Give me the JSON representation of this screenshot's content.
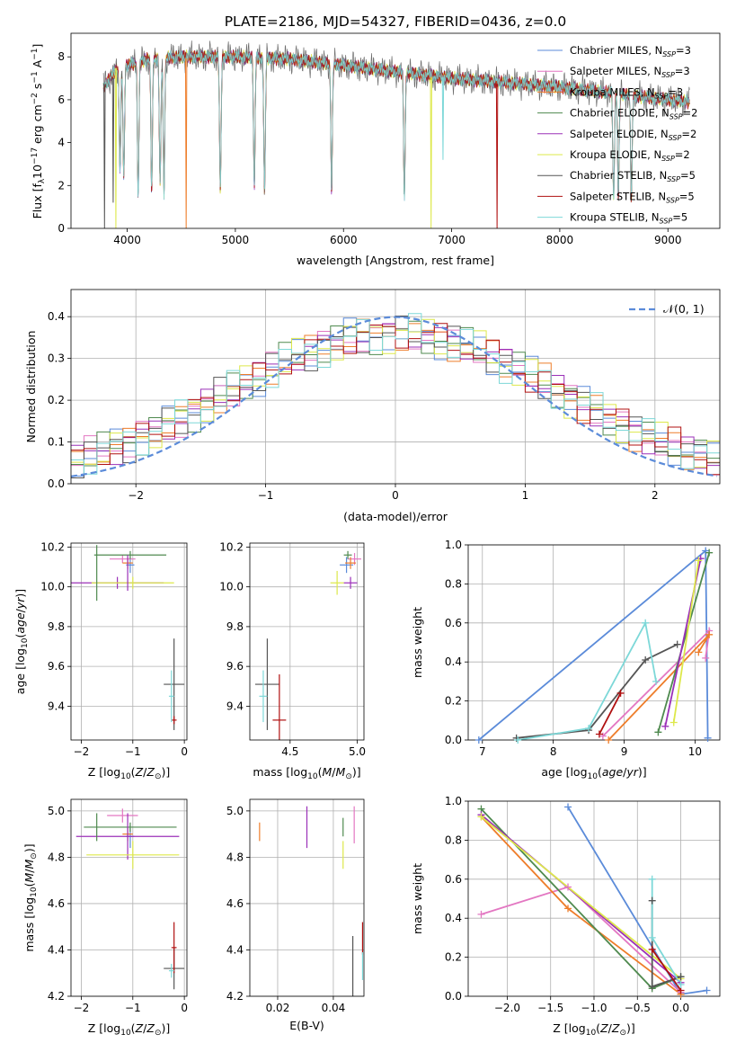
{
  "title": "PLATE=2186, MJD=54327, FIBERID=0436, z=0.0",
  "colors": {
    "Chabrier MILES": "#5b8bd9",
    "Salpeter MILES": "#e377c2",
    "Kroupa MILES": "#ee7d2a",
    "Chabrier ELODIE": "#4f8a4f",
    "Salpeter ELODIE": "#9b30b8",
    "Kroupa ELODIE": "#dde84a",
    "Chabrier STELIB": "#555555",
    "Salpeter STELIB": "#b01010",
    "Kroupa STELIB": "#7dd8d8"
  },
  "legend_spectrum": [
    {
      "name": "Chabrier MILES",
      "text": "Chabrier MILES, N",
      "sub": "SSP",
      "tail": "=3"
    },
    {
      "name": "Salpeter MILES",
      "text": "Salpeter MILES, N",
      "sub": "SSP",
      "tail": "=3"
    },
    {
      "name": "Kroupa MILES",
      "text": "Kroupa MILES, N",
      "sub": "SSP",
      "tail": "=3"
    },
    {
      "name": "Chabrier ELODIE",
      "text": "Chabrier ELODIE, N",
      "sub": "SSP",
      "tail": "=2"
    },
    {
      "name": "Salpeter ELODIE",
      "text": "Salpeter ELODIE, N",
      "sub": "SSP",
      "tail": "=2"
    },
    {
      "name": "Kroupa ELODIE",
      "text": "Kroupa ELODIE, N",
      "sub": "SSP",
      "tail": "=2"
    },
    {
      "name": "Chabrier STELIB",
      "text": "Chabrier STELIB, N",
      "sub": "SSP",
      "tail": "=5"
    },
    {
      "name": "Salpeter STELIB",
      "text": "Salpeter STELIB, N",
      "sub": "SSP",
      "tail": "=5"
    },
    {
      "name": "Kroupa STELIB",
      "text": "Kroupa STELIB, N",
      "sub": "SSP",
      "tail": "=5"
    }
  ],
  "legend_hist": "𝒩(0, 1)",
  "chart_data": [
    {
      "id": "spectrum",
      "type": "line",
      "xlabel": "wavelength [Angstrom, rest frame]",
      "ylabel": "Flux [f_λ 10^-17 erg cm^-2 s^-1 A^-1]",
      "xlim": [
        3480,
        9480
      ],
      "ylim": [
        0,
        9.1
      ],
      "xticks": [
        4000,
        5000,
        6000,
        7000,
        8000,
        9000
      ],
      "yticks": [
        0,
        2,
        4,
        6,
        8
      ],
      "continuum": [
        [
          3780,
          6.6
        ],
        [
          3900,
          7.4
        ],
        [
          4000,
          7.6
        ],
        [
          4200,
          7.9
        ],
        [
          4500,
          8.0
        ],
        [
          5000,
          8.0
        ],
        [
          5500,
          7.9
        ],
        [
          6000,
          7.6
        ],
        [
          6500,
          7.3
        ],
        [
          7000,
          7.0
        ],
        [
          7500,
          6.8
        ],
        [
          8000,
          6.6
        ],
        [
          8500,
          6.3
        ],
        [
          9000,
          6.0
        ],
        [
          9200,
          5.9
        ]
      ],
      "features": [
        [
          3933,
          2.0
        ],
        [
          3968,
          1.5
        ],
        [
          4101,
          0.6
        ],
        [
          4226,
          0.7
        ],
        [
          4304,
          1.0
        ],
        [
          4340,
          0.5
        ],
        [
          4861,
          0.5
        ],
        [
          5175,
          0.8
        ],
        [
          5270,
          0.4
        ],
        [
          5890,
          0.6
        ],
        [
          6563,
          0.5
        ],
        [
          8498,
          0.4
        ],
        [
          8542,
          0.5
        ],
        [
          8662,
          0.4
        ]
      ],
      "spikes": [
        {
          "x": 3790,
          "y": 0.0,
          "series": "Chabrier STELIB"
        },
        {
          "x": 3870,
          "y": 1.2,
          "series": "Chabrier STELIB"
        },
        {
          "x": 3895,
          "y": 0.0,
          "series": "Kroupa ELODIE"
        },
        {
          "x": 4545,
          "y": 0.0,
          "series": "Kroupa MILES"
        },
        {
          "x": 6810,
          "y": 0.0,
          "series": "Kroupa ELODIE"
        },
        {
          "x": 6920,
          "y": 3.2,
          "series": "Kroupa STELIB"
        },
        {
          "x": 7420,
          "y": 0.0,
          "series": "Salpeter STELIB"
        }
      ],
      "series": [
        "Chabrier MILES",
        "Salpeter MILES",
        "Kroupa MILES",
        "Chabrier ELODIE",
        "Salpeter ELODIE",
        "Kroupa ELODIE",
        "Chabrier STELIB",
        "Salpeter STELIB",
        "Kroupa STELIB"
      ]
    },
    {
      "id": "residual_hist",
      "type": "line",
      "xlabel": "(data-model)/error",
      "ylabel": "Normed distribution",
      "xlim": [
        -2.5,
        2.5
      ],
      "ylim": [
        0,
        0.465
      ],
      "xticks": [
        -2,
        -1,
        0,
        1,
        2
      ],
      "yticks": [
        0.0,
        0.1,
        0.2,
        0.3,
        0.4
      ],
      "bin_width": 0.1,
      "reference": "N(0,1)"
    },
    {
      "id": "age_vs_Z",
      "type": "scatter",
      "xlabel": "Z [log10(Z/Z⊙)]",
      "ylabel": "age [log10(age/yr)]",
      "xlim": [
        -2.2,
        0.05
      ],
      "ylim": [
        9.23,
        10.22
      ],
      "xticks": [
        -2,
        -1,
        0
      ],
      "yticks": [
        9.4,
        9.6,
        9.8,
        10.0,
        10.2
      ],
      "points": [
        {
          "series": "Chabrier MILES",
          "x": -1.05,
          "y": 10.11,
          "xerr": 0.08,
          "yerr": 0.04
        },
        {
          "series": "Salpeter MILES",
          "x": -1.2,
          "y": 10.14,
          "xerr": 0.25,
          "yerr": 0.02
        },
        {
          "series": "Kroupa MILES",
          "x": -1.1,
          "y": 10.12,
          "xerr": 0.1,
          "yerr": 0.03
        },
        {
          "series": "Chabrier ELODIE",
          "x": -1.05,
          "y": 10.16,
          "xerr": 0.7,
          "yerr": 0.02
        },
        {
          "series": "Salpeter ELODIE",
          "x": -1.3,
          "y": 10.02,
          "xerr": 0.9,
          "yerr": 0.03
        },
        {
          "series": "Kroupa ELODIE",
          "x": -1.0,
          "y": 10.02,
          "xerr": 0.8,
          "yerr": 0.03
        },
        {
          "series": "Chabrier ELODIE",
          "x": -1.7,
          "y": 10.07,
          "xerr": 0.0,
          "yerr": 0.14
        },
        {
          "series": "Salpeter ELODIE",
          "x": -1.1,
          "y": 10.07,
          "xerr": 0.0,
          "yerr": 0.09
        },
        {
          "series": "Chabrier STELIB",
          "x": -0.2,
          "y": 9.51,
          "xerr": 0.2,
          "yerr": 0.23
        },
        {
          "series": "Salpeter STELIB",
          "x": -0.2,
          "y": 9.33,
          "xerr": 0.05,
          "yerr": 0.02
        },
        {
          "series": "Kroupa STELIB",
          "x": -0.25,
          "y": 9.45,
          "xerr": 0.05,
          "yerr": 0.13
        }
      ]
    },
    {
      "id": "age_vs_mass",
      "type": "scatter",
      "xlabel": "mass [log10(M/M⊙)]",
      "ylabel": "",
      "xlim": [
        4.2,
        5.05
      ],
      "ylim": [
        9.23,
        10.22
      ],
      "xticks": [
        4.5,
        5.0
      ],
      "yticks": [
        9.4,
        9.6,
        9.8,
        10.0,
        10.2
      ],
      "points": [
        {
          "series": "Chabrier MILES",
          "x": 4.92,
          "y": 10.11,
          "xerr": 0.05,
          "yerr": 0.04
        },
        {
          "series": "Salpeter MILES",
          "x": 4.98,
          "y": 10.14,
          "xerr": 0.05,
          "yerr": 0.03
        },
        {
          "series": "Kroupa MILES",
          "x": 4.95,
          "y": 10.12,
          "xerr": 0.04,
          "yerr": 0.03
        },
        {
          "series": "Chabrier ELODIE",
          "x": 4.93,
          "y": 10.16,
          "xerr": 0.03,
          "yerr": 0.02
        },
        {
          "series": "Salpeter ELODIE",
          "x": 4.95,
          "y": 10.02,
          "xerr": 0.05,
          "yerr": 0.03
        },
        {
          "series": "Kroupa ELODIE",
          "x": 4.85,
          "y": 10.02,
          "xerr": 0.05,
          "yerr": 0.06
        },
        {
          "series": "Chabrier STELIB",
          "x": 4.33,
          "y": 9.51,
          "xerr": 0.09,
          "yerr": 0.23
        },
        {
          "series": "Salpeter STELIB",
          "x": 4.42,
          "y": 9.33,
          "xerr": 0.05,
          "yerr": 0.23
        },
        {
          "series": "Kroupa STELIB",
          "x": 4.3,
          "y": 9.45,
          "xerr": 0.03,
          "yerr": 0.13
        }
      ]
    },
    {
      "id": "massweight_vs_age",
      "type": "line",
      "xlabel": "age [log10(age/yr)]",
      "ylabel": "mass weight",
      "xlim": [
        6.8,
        10.35
      ],
      "ylim": [
        0,
        1.0
      ],
      "xticks": [
        7,
        8,
        9,
        10
      ],
      "yticks": [
        0.0,
        0.2,
        0.4,
        0.6,
        0.8,
        1.0
      ],
      "series": [
        {
          "name": "Chabrier MILES",
          "x": [
            6.95,
            10.15,
            10.18
          ],
          "y": [
            0.0,
            0.97,
            0.01
          ]
        },
        {
          "name": "Salpeter MILES",
          "x": [
            8.7,
            10.2,
            10.15
          ],
          "y": [
            0.02,
            0.56,
            0.42
          ]
        },
        {
          "name": "Kroupa MILES",
          "x": [
            8.78,
            10.2,
            10.05
          ],
          "y": [
            0.0,
            0.54,
            0.45
          ]
        },
        {
          "name": "Chabrier ELODIE",
          "x": [
            9.48,
            10.2
          ],
          "y": [
            0.04,
            0.96
          ]
        },
        {
          "name": "Salpeter ELODIE",
          "x": [
            9.58,
            10.08
          ],
          "y": [
            0.07,
            0.93
          ]
        },
        {
          "name": "Kroupa ELODIE",
          "x": [
            9.7,
            10.05
          ],
          "y": [
            0.09,
            0.92
          ]
        },
        {
          "name": "Chabrier STELIB",
          "x": [
            7.48,
            8.5,
            9.3,
            9.75
          ],
          "y": [
            0.01,
            0.05,
            0.41,
            0.49
          ]
        },
        {
          "name": "Salpeter STELIB",
          "x": [
            8.65,
            8.95
          ],
          "y": [
            0.03,
            0.24
          ]
        },
        {
          "name": "Kroupa STELIB",
          "x": [
            7.5,
            8.5,
            9.3,
            9.45
          ],
          "y": [
            0.0,
            0.06,
            0.6,
            0.3
          ]
        }
      ]
    },
    {
      "id": "mass_vs_Z",
      "type": "scatter",
      "xlabel": "Z [log10(Z/Z⊙)]",
      "ylabel": "mass [log10(M/M⊙)]",
      "xlim": [
        -2.2,
        0.05
      ],
      "ylim": [
        4.2,
        5.05
      ],
      "xticks": [
        -2,
        -1,
        0
      ],
      "yticks": [
        4.2,
        4.4,
        4.6,
        4.8,
        5.0
      ],
      "points": [
        {
          "series": "Chabrier MILES",
          "x": -1.05,
          "y": 4.89,
          "xerr": 0.08,
          "yerr": 0.05
        },
        {
          "series": "Salpeter MILES",
          "x": -1.2,
          "y": 4.98,
          "xerr": 0.3,
          "yerr": 0.03
        },
        {
          "series": "Kroupa MILES",
          "x": -1.1,
          "y": 4.9,
          "xerr": 0.1,
          "yerr": 0.03
        },
        {
          "series": "Chabrier ELODIE",
          "x": -1.05,
          "y": 4.93,
          "xerr": 0.9,
          "yerr": 0.02
        },
        {
          "series": "Salpeter ELODIE",
          "x": -1.1,
          "y": 4.89,
          "xerr": 1.0,
          "yerr": 0.1
        },
        {
          "series": "Kroupa ELODIE",
          "x": -1.0,
          "y": 4.81,
          "xerr": 0.9,
          "yerr": 0.06
        },
        {
          "series": "Chabrier ELODIE",
          "x": -1.7,
          "y": 4.93,
          "xerr": 0.0,
          "yerr": 0.06
        },
        {
          "series": "Chabrier STELIB",
          "x": -0.2,
          "y": 4.32,
          "xerr": 0.2,
          "yerr": 0.09
        },
        {
          "series": "Salpeter STELIB",
          "x": -0.2,
          "y": 4.41,
          "xerr": 0.05,
          "yerr": 0.11
        },
        {
          "series": "Kroupa STELIB",
          "x": -0.25,
          "y": 4.31,
          "xerr": 0.05,
          "yerr": 0.03
        }
      ]
    },
    {
      "id": "mass_vs_EBV",
      "type": "scatter",
      "xlabel": "E(B-V)",
      "ylabel": "",
      "xlim": [
        0.01,
        0.051
      ],
      "ylim": [
        4.2,
        5.05
      ],
      "xticks": [
        0.02,
        0.04
      ],
      "yticks": [
        4.2,
        4.4,
        4.6,
        4.8,
        5.0
      ],
      "points": [
        {
          "series": "Kroupa MILES",
          "x": 0.0135,
          "y": 4.91,
          "xerr": 0,
          "yerr": 0.04
        },
        {
          "series": "Salpeter ELODIE",
          "x": 0.0305,
          "y": 4.93,
          "xerr": 0,
          "yerr": 0.09
        },
        {
          "series": "Chabrier ELODIE",
          "x": 0.0435,
          "y": 4.93,
          "xerr": 0,
          "yerr": 0.04
        },
        {
          "series": "Kroupa ELODIE",
          "x": 0.0435,
          "y": 4.81,
          "xerr": 0,
          "yerr": 0.06
        },
        {
          "series": "Salpeter MILES",
          "x": 0.0475,
          "y": 4.94,
          "xerr": 0,
          "yerr": 0.08
        },
        {
          "series": "Chabrier STELIB",
          "x": 0.047,
          "y": 4.32,
          "xerr": 0,
          "yerr": 0.14
        },
        {
          "series": "Salpeter STELIB",
          "x": 0.0505,
          "y": 4.45,
          "xerr": 0,
          "yerr": 0.07
        },
        {
          "series": "Kroupa STELIB",
          "x": 0.0505,
          "y": 4.33,
          "xerr": 0,
          "yerr": 0.06
        }
      ]
    },
    {
      "id": "massweight_vs_Z",
      "type": "line",
      "xlabel": "Z [log10(Z/Z⊙)]",
      "ylabel": "mass weight",
      "xlim": [
        -2.45,
        0.45
      ],
      "ylim": [
        0,
        1.0
      ],
      "xticks": [
        -2.0,
        -1.5,
        -1.0,
        -0.5,
        0.0
      ],
      "yticks": [
        0.0,
        0.2,
        0.4,
        0.6,
        0.8,
        1.0
      ],
      "series": [
        {
          "name": "Chabrier MILES",
          "x": [
            -1.3,
            0.0,
            0.3
          ],
          "y": [
            0.97,
            0.01,
            0.03
          ]
        },
        {
          "name": "Salpeter MILES",
          "x": [
            -2.3,
            -1.3,
            0.0
          ],
          "y": [
            0.42,
            0.56,
            0.02
          ]
        },
        {
          "name": "Kroupa MILES",
          "x": [
            -2.3,
            -1.3,
            0.0
          ],
          "y": [
            0.92,
            0.45,
            0.01
          ]
        },
        {
          "name": "Chabrier ELODIE",
          "x": [
            -2.3,
            -0.33,
            0.0
          ],
          "y": [
            0.96,
            0.04,
            0.1
          ]
        },
        {
          "name": "Salpeter ELODIE",
          "x": [
            -2.3,
            0.0
          ],
          "y": [
            0.93,
            0.07
          ]
        },
        {
          "name": "Kroupa ELODIE",
          "x": [
            -2.3,
            0.0
          ],
          "y": [
            0.92,
            0.09
          ]
        },
        {
          "name": "Chabrier STELIB",
          "x": [
            -0.33,
            -0.33,
            0.0
          ],
          "y": [
            0.49,
            0.05,
            0.1
          ]
        },
        {
          "name": "Salpeter STELIB",
          "x": [
            -0.33,
            0.0
          ],
          "y": [
            0.24,
            0.03
          ]
        },
        {
          "name": "Kroupa STELIB",
          "x": [
            -0.33,
            -0.33,
            0.0
          ],
          "y": [
            0.6,
            0.3,
            0.06
          ]
        }
      ]
    }
  ]
}
